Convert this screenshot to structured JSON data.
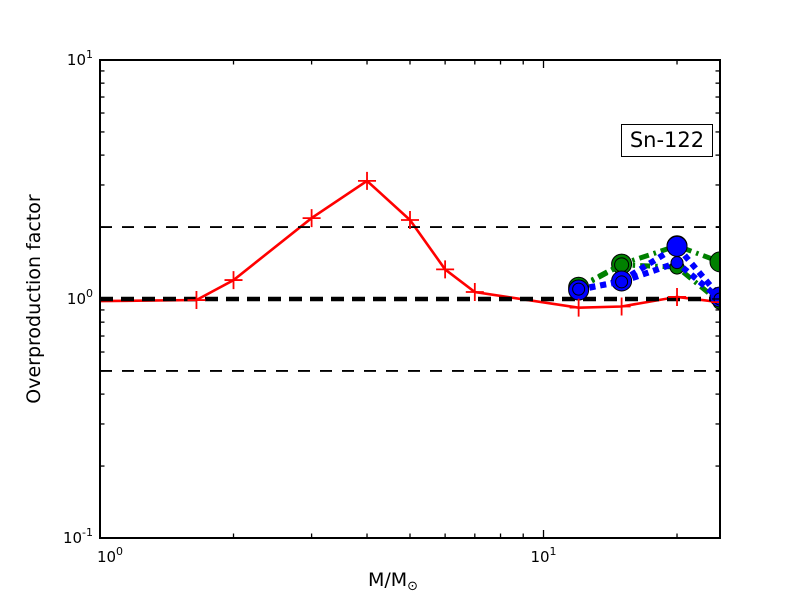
{
  "chart_data": {
    "type": "line",
    "title": "",
    "annotation": {
      "label": "Sn-122"
    },
    "xlabel": "M/M⊙",
    "xlabel_main": "M/M",
    "xlabel_sub": "⊙",
    "ylabel": "Overproduction factor",
    "xscale": "log",
    "yscale": "log",
    "xlim": [
      1,
      25
    ],
    "ylim": [
      0.1,
      10
    ],
    "grid": false,
    "legend": "none",
    "x_tick_labels": [
      {
        "value": 1,
        "mantissa": "10",
        "exponent": "0"
      },
      {
        "value": 10,
        "mantissa": "10",
        "exponent": "1"
      }
    ],
    "y_tick_labels": [
      {
        "value": 10,
        "mantissa": "10",
        "exponent": "1"
      },
      {
        "value": 1,
        "mantissa": "10",
        "exponent": "0"
      },
      {
        "value": 0.1,
        "mantissa": "10",
        "exponent": "-1"
      }
    ],
    "x_minor_ticks": [
      2,
      3,
      4,
      5,
      6,
      7,
      8,
      9,
      20
    ],
    "y_minor_ticks": [
      0.2,
      0.3,
      0.4,
      0.5,
      0.6,
      0.7,
      0.8,
      0.9,
      2,
      3,
      4,
      5,
      6,
      7,
      8,
      9
    ],
    "reference_lines": [
      {
        "y": 1.0,
        "color": "#000000",
        "style": "dashed",
        "lw": 4.5,
        "dash": "13 8"
      },
      {
        "y": 2.0,
        "color": "#000000",
        "style": "dashed",
        "lw": 1.8,
        "dash": "12 10"
      },
      {
        "y": 0.5,
        "color": "#000000",
        "style": "dashed",
        "lw": 1.8,
        "dash": "12 10"
      }
    ],
    "series": [
      {
        "name": "red-solid-plus",
        "color": "#ff0000",
        "linestyle": "solid",
        "lw": 2.6,
        "marker": "plus",
        "marker_size": 9,
        "marker_from_index": 1,
        "x": [
          1.0,
          1.65,
          2,
          3,
          4,
          5,
          6,
          7,
          12,
          15,
          20,
          25
        ],
        "y": [
          0.98,
          0.99,
          1.2,
          2.18,
          3.12,
          2.14,
          1.33,
          1.07,
          0.92,
          0.93,
          1.02,
          0.97
        ]
      },
      {
        "name": "green-dashdot-large-circles",
        "color": "#008000",
        "linestyle": "dashdot",
        "lw": 5,
        "dash": "10 5 2.5 5",
        "marker": "circle",
        "marker_size": 10,
        "marker_from_index": 0,
        "x": [
          12,
          15,
          20,
          25
        ],
        "y": [
          1.12,
          1.4,
          1.67,
          1.43
        ]
      },
      {
        "name": "green-dashdot-small-circles",
        "color": "#008000",
        "linestyle": "dashdot",
        "lw": 5,
        "dash": "10 5 2.5 5",
        "marker": "circle",
        "marker_size": 7,
        "marker_from_index": 0,
        "x": [
          12,
          15,
          20,
          25
        ],
        "y": [
          1.11,
          1.39,
          1.36,
          0.97
        ]
      },
      {
        "name": "blue-dotted-large-circles",
        "color": "#0000ff",
        "linestyle": "dotted",
        "lw": 6,
        "dash": "6 5",
        "marker": "circle",
        "marker_size": 10,
        "marker_from_index": 0,
        "x": [
          12,
          15,
          20,
          25
        ],
        "y": [
          1.09,
          1.19,
          1.66,
          1.02
        ]
      },
      {
        "name": "blue-dotted-small-circles",
        "color": "#0000ff",
        "linestyle": "dotted",
        "lw": 6,
        "dash": "6 5",
        "marker": "circle",
        "marker_size": 6,
        "marker_from_index": 0,
        "x": [
          12,
          15,
          20,
          25
        ],
        "y": [
          1.1,
          1.18,
          1.42,
          1.0
        ]
      }
    ],
    "axes_color": "#000000",
    "background_color": "#ffffff"
  }
}
